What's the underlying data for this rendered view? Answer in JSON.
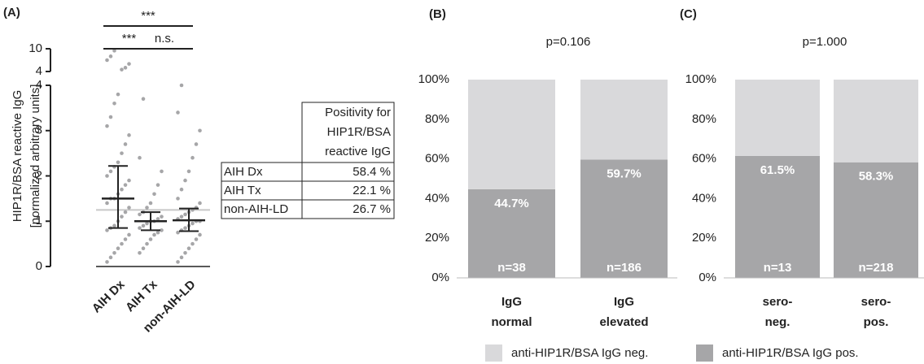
{
  "chart_data": [
    {
      "type": "dotplot",
      "title": "(A)",
      "ylabel": [
        "HIP1R/BSA reactive IgG",
        "[normalized arbitrary units]"
      ],
      "categories": [
        "AIH Dx",
        "AIH Tx",
        "non-AIH-LD"
      ],
      "ylim": [
        0,
        4
      ],
      "yticks": [
        0,
        1,
        2,
        3,
        4
      ],
      "ylim_upper": [
        4,
        10
      ],
      "yticks_upper": [
        4,
        10
      ],
      "points": [
        [
          0.1,
          0.2,
          0.3,
          0.4,
          0.5,
          0.6,
          0.7,
          0.8,
          0.85,
          0.9,
          1.0,
          1.1,
          1.2,
          1.3,
          1.4,
          1.5,
          1.5,
          1.6,
          1.7,
          1.8,
          1.9,
          2.0,
          2.1,
          2.2,
          2.3,
          2.5,
          2.7,
          2.9,
          3.1,
          3.3,
          3.6,
          3.8,
          4.5,
          5,
          6,
          7,
          8,
          9.5
        ],
        [
          0.3,
          0.4,
          0.5,
          0.6,
          0.7,
          0.75,
          0.8,
          0.85,
          0.9,
          0.95,
          1.0,
          1.0,
          1.05,
          1.1,
          1.15,
          1.2,
          1.3,
          1.4,
          1.6,
          1.8,
          2.1,
          2.4,
          3.7
        ],
        [
          0.1,
          0.2,
          0.3,
          0.4,
          0.5,
          0.6,
          0.7,
          0.75,
          0.8,
          0.85,
          0.9,
          0.95,
          1.0,
          1.0,
          1.05,
          1.1,
          1.15,
          1.2,
          1.25,
          1.3,
          1.4,
          1.5,
          1.7,
          1.9,
          2.1,
          2.4,
          2.7,
          3.0,
          3.4,
          4.0
        ]
      ],
      "medians": [
        1.5,
        1.0,
        1.02
      ],
      "q1": [
        0.85,
        0.8,
        0.78
      ],
      "q3": [
        2.22,
        1.2,
        1.28
      ],
      "cutoff": 1.25,
      "color": "#a6a6a8",
      "annotations": [
        {
          "label": "***",
          "from": 0,
          "to": 2
        },
        {
          "label": "***",
          "from": 0,
          "to": 1
        },
        {
          "label": "n.s.",
          "from": 1,
          "to": 2
        }
      ]
    },
    {
      "type": "stacked_bar",
      "title": "(B)",
      "subtitle": "p=0.106",
      "categories": [
        "IgG normal",
        "IgG elevated"
      ],
      "series": [
        {
          "name": "anti-HIP1R/BSA IgG pos.",
          "color": "#a6a6a8",
          "values": [
            44.7,
            59.7
          ],
          "value_labels": [
            "44.7%",
            "59.7%"
          ]
        },
        {
          "name": "anti-HIP1R/BSA IgG neg.",
          "color": "#d9d9db",
          "values": [
            55.3,
            40.3
          ]
        }
      ],
      "annotations": [
        "n=38",
        "n=186"
      ],
      "ylim": [
        0,
        100
      ],
      "yticks": [
        {
          "value": 0,
          "label": "0%"
        },
        {
          "value": 20,
          "label": "20%"
        },
        {
          "value": 40,
          "label": "40%"
        },
        {
          "value": 60,
          "label": "60%"
        },
        {
          "value": 80,
          "label": "80%"
        },
        {
          "value": 100,
          "label": "100%"
        }
      ]
    },
    {
      "type": "stacked_bar",
      "title": "(C)",
      "subtitle": "p=1.000",
      "categories": [
        "sero- neg.",
        "sero- pos."
      ],
      "series": [
        {
          "values": [
            61.5,
            58.3
          ],
          "value_labels": [
            "61.5%",
            "58.3%"
          ]
        },
        {
          "values": [
            38.5,
            41.7
          ]
        }
      ],
      "annotations": [
        "n=13",
        "n=218"
      ],
      "ylim": [
        0,
        100
      ],
      "yticks": [
        {
          "value": 0,
          "label": "0%"
        },
        {
          "value": 20,
          "label": "20%"
        },
        {
          "value": 40,
          "label": "40%"
        },
        {
          "value": 60,
          "label": "60%"
        },
        {
          "value": 80,
          "label": "80%"
        },
        {
          "value": 100,
          "label": "100%"
        }
      ]
    }
  ],
  "table": {
    "header": [
      "Positivity for",
      "HIP1R/BSA",
      "reactive IgG"
    ],
    "rows": [
      [
        "AIH Dx",
        "58.4 %"
      ],
      [
        "AIH Tx",
        "22.1 %"
      ],
      [
        "non-AIH-LD",
        "26.7 %"
      ]
    ]
  }
}
